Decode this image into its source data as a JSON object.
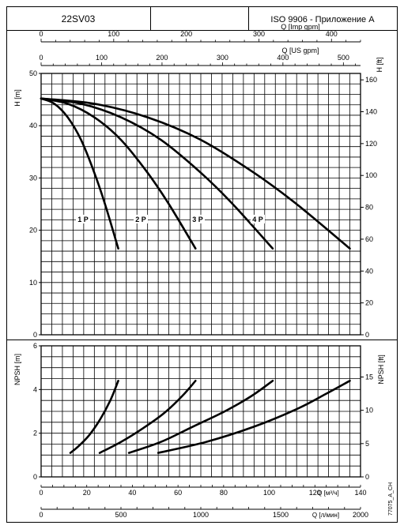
{
  "header": {
    "model": "22SV03",
    "middle": "",
    "standard": "ISO 9906 - Приложение A"
  },
  "chart_data": [
    {
      "type": "line",
      "name": "head",
      "top_axes": [
        {
          "label": "Q [Imp gpm]",
          "ticks": [
            0,
            100,
            200,
            300,
            400
          ],
          "max": 440
        },
        {
          "label": "Q [US gpm]",
          "ticks": [
            0,
            100,
            200,
            300,
            400,
            500
          ],
          "max": 528.34
        }
      ],
      "xlim": [
        0,
        120
      ],
      "ylabel": "H [m]",
      "ylim": [
        0,
        50
      ],
      "yticks": [
        0,
        10,
        20,
        30,
        40,
        50
      ],
      "ylabel_right": "H [ft]",
      "yticks_right": [
        0,
        20,
        40,
        60,
        80,
        100,
        120,
        140,
        160
      ],
      "yright_factor": 3.2808,
      "grid": true,
      "series": [
        {
          "name": "1 P",
          "x": [
            0,
            5,
            10,
            15,
            20,
            24,
            29
          ],
          "y": [
            45.2,
            44.2,
            41.6,
            37.3,
            31.0,
            25.0,
            16.5
          ]
        },
        {
          "name": "2 P",
          "x": [
            0,
            10,
            20,
            30,
            40,
            48,
            58
          ],
          "y": [
            45.2,
            44.2,
            41.6,
            37.3,
            31.0,
            25.0,
            16.5
          ]
        },
        {
          "name": "3 P",
          "x": [
            0,
            15,
            30,
            45,
            60,
            72,
            87
          ],
          "y": [
            45.2,
            44.2,
            41.6,
            37.3,
            31.0,
            25.0,
            16.5
          ]
        },
        {
          "name": "4 P",
          "x": [
            0,
            20,
            40,
            60,
            80,
            96,
            116
          ],
          "y": [
            45.2,
            44.2,
            41.6,
            37.3,
            31.0,
            25.0,
            16.5
          ]
        }
      ]
    },
    {
      "type": "line",
      "name": "npsh",
      "ylabel": "NPSH [m]",
      "ylim": [
        0,
        6
      ],
      "yticks": [
        0,
        2,
        4,
        6
      ],
      "ylabel_right": "NPSH [ft]",
      "yticks_right": [
        0,
        5,
        10,
        15
      ],
      "yright_factor": 3.2808,
      "xlim": [
        0,
        120
      ],
      "grid": true,
      "series": [
        {
          "x": [
            11,
            14,
            18,
            22,
            26,
            29
          ],
          "y": [
            1.1,
            1.4,
            1.9,
            2.6,
            3.5,
            4.4
          ]
        },
        {
          "x": [
            22,
            30,
            38,
            46,
            53,
            58
          ],
          "y": [
            1.1,
            1.6,
            2.2,
            2.9,
            3.7,
            4.4
          ]
        },
        {
          "x": [
            33,
            45,
            57,
            69,
            79,
            87
          ],
          "y": [
            1.1,
            1.6,
            2.3,
            3.0,
            3.7,
            4.4
          ]
        },
        {
          "x": [
            44,
            62,
            80,
            96,
            107,
            116
          ],
          "y": [
            1.1,
            1.6,
            2.3,
            3.1,
            3.8,
            4.4
          ]
        }
      ]
    }
  ],
  "bottom_axes": [
    {
      "label": "Q [м³/ч]",
      "ticks": [
        0,
        20,
        40,
        60,
        80,
        100,
        120,
        140
      ],
      "max": 140
    },
    {
      "label": "Q [л/мин]",
      "ticks": [
        0,
        500,
        1000,
        1500,
        2000
      ],
      "max": 2000
    }
  ],
  "side_code": "77075_A_CH"
}
